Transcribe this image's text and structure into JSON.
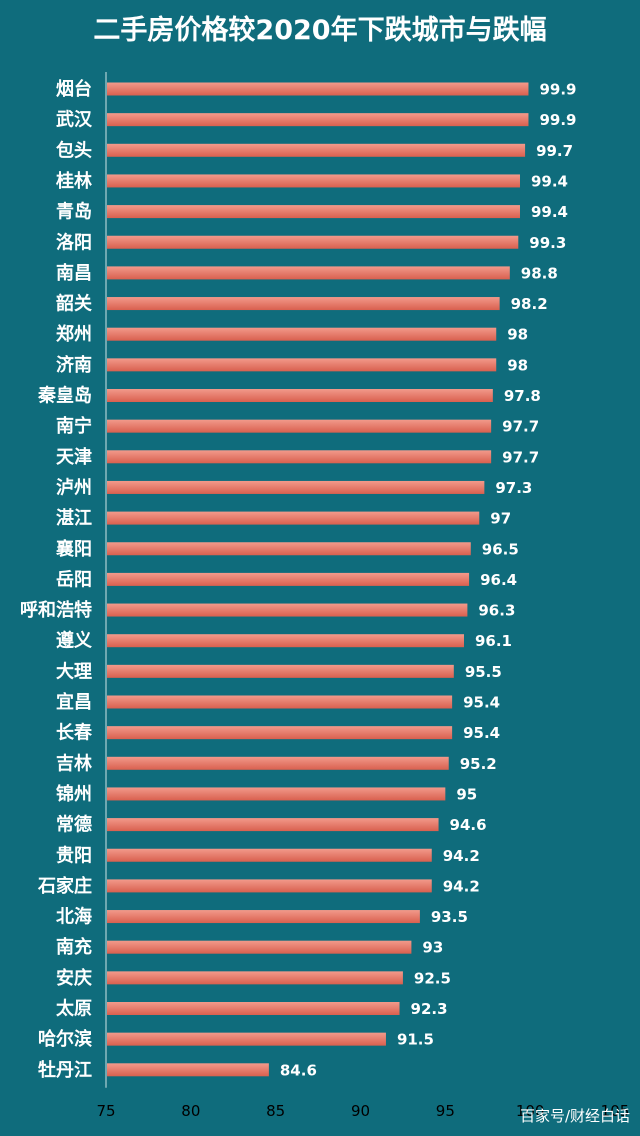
{
  "chart_data": {
    "type": "bar",
    "orientation": "horizontal",
    "title": "二手房价格较2020年下跌城市与跌幅",
    "categories": [
      "烟台",
      "武汉",
      "包头",
      "桂林",
      "青岛",
      "洛阳",
      "南昌",
      "韶关",
      "郑州",
      "济南",
      "秦皇岛",
      "南宁",
      "天津",
      "泸州",
      "湛江",
      "襄阳",
      "岳阳",
      "呼和浩特",
      "遵义",
      "大理",
      "宜昌",
      "长春",
      "吉林",
      "锦州",
      "常德",
      "贵阳",
      "石家庄",
      "北海",
      "南充",
      "安庆",
      "太原",
      "哈尔滨",
      "牡丹江"
    ],
    "values": [
      99.9,
      99.9,
      99.7,
      99.4,
      99.4,
      99.3,
      98.8,
      98.2,
      98,
      98,
      97.8,
      97.7,
      97.7,
      97.3,
      97,
      96.5,
      96.4,
      96.3,
      96.1,
      95.5,
      95.4,
      95.4,
      95.2,
      95,
      94.6,
      94.2,
      94.2,
      93.5,
      93,
      92.5,
      92.3,
      91.5,
      84.6
    ],
    "value_labels": [
      "99.9",
      "99.9",
      "99.7",
      "99.4",
      "99.4",
      "99.3",
      "98.8",
      "98.2",
      "98",
      "98",
      "97.8",
      "97.7",
      "97.7",
      "97.3",
      "97",
      "96.5",
      "96.4",
      "96.3",
      "96.1",
      "95.5",
      "95.4",
      "95.4",
      "95.2",
      "95",
      "94.6",
      "94.2",
      "94.2",
      "93.5",
      "93",
      "92.5",
      "92.3",
      "91.5",
      "84.6"
    ],
    "xlim": [
      75,
      105
    ],
    "xticks": [
      "75",
      "80",
      "85",
      "90",
      "95",
      "100",
      "105"
    ],
    "grid": false,
    "bar_color": "#e5796a",
    "background_color": "#0f6c7c"
  },
  "watermark": "百家号/财经白话"
}
